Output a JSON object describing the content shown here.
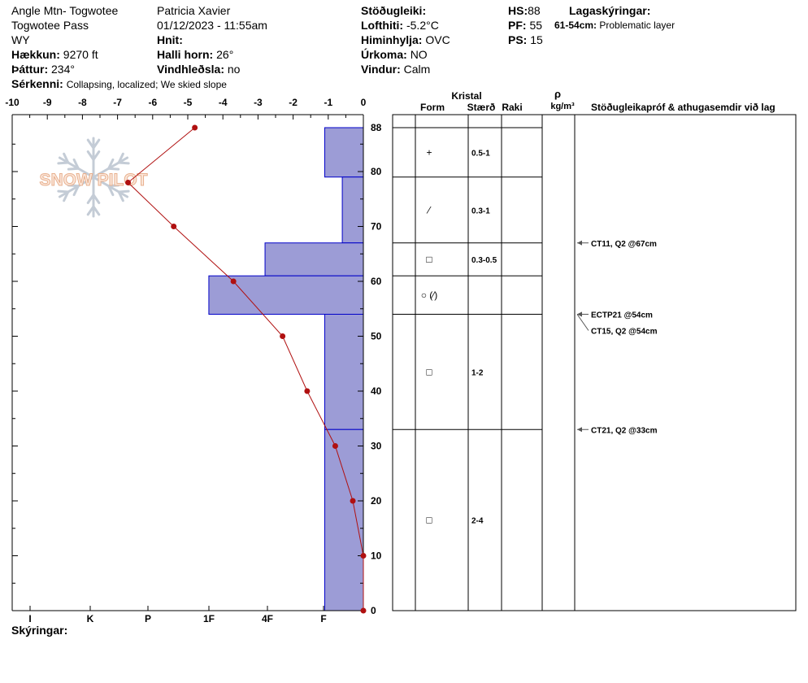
{
  "header": {
    "site": "Angle Mtn- Togwotee",
    "location": "Togwotee Pass",
    "state": "WY",
    "elevation_label": "Hækkun:",
    "elevation": "9270 ft",
    "aspect_label": "Þáttur:",
    "aspect": "234°",
    "features_label": "Sérkenni:",
    "features": "Collapsing, localized;  We skied slope",
    "observer": "Patricia Xavier",
    "datetime": "01/12/2023 - 11:55am",
    "coords_label": "Hnit:",
    "slope_label": "Halli horn:",
    "slope": "26°",
    "wind_loading_label": "Vindhleðsla:",
    "wind_loading": "no",
    "stability_label": "Stöðugleiki:",
    "air_temp_label": "Lofthiti:",
    "air_temp": "-5.2°C",
    "sky_label": "Himinhylja:",
    "sky": "OVC",
    "precip_label": "Úrkoma:",
    "precip": "NO",
    "wind_label": "Vindur:",
    "wind": "Calm",
    "hs_label": "HS:",
    "hs": "88",
    "pf_label": "PF:",
    "pf": "55",
    "ps_label": "PS:",
    "ps": "15",
    "layer_notes_label": "Lagaskýringar:",
    "layer_note_range": "61-54cm:",
    "layer_note_text": "Problematic layer"
  },
  "footer": {
    "notes_label": "Skýringar:"
  },
  "watermark": {
    "text": "SNOW PILOT",
    "icon": "snowflake-icon"
  },
  "colors": {
    "hardness_fill": "#9c9cd6",
    "hardness_stroke": "#0000c8",
    "temp_line": "#b01010"
  },
  "table_headers": {
    "crystal": "Kristal",
    "form": "Form",
    "size": "Stærð",
    "moisture": "Raki",
    "density_symbol": "ρ",
    "density_unit": "kg/m³",
    "tests": "Stöðugleikapróf & athugasemdir við lag"
  },
  "chart_data": {
    "type": "snow-profile",
    "temp_axis": {
      "min": -10,
      "max": 0,
      "ticks": [
        "-10",
        "-9",
        "-8",
        "-7",
        "-6",
        "-5",
        "-4",
        "-3",
        "-2",
        "-1",
        "0"
      ]
    },
    "depth_axis": {
      "min": 0,
      "max": 88,
      "ticks": [
        "0",
        "10",
        "20",
        "30",
        "40",
        "50",
        "60",
        "70",
        "80",
        "88"
      ]
    },
    "hardness_ticks": [
      "I",
      "K",
      "P",
      "1F",
      "4F",
      "F"
    ],
    "hardness_profile": [
      {
        "top": 88,
        "bottom": 79,
        "temp_equiv": -1.1
      },
      {
        "top": 79,
        "bottom": 67,
        "temp_equiv": -0.6
      },
      {
        "top": 67,
        "bottom": 61,
        "temp_equiv": -2.8
      },
      {
        "top": 61,
        "bottom": 54,
        "temp_equiv": -4.4
      },
      {
        "top": 54,
        "bottom": 33,
        "temp_equiv": -1.1
      },
      {
        "top": 33,
        "bottom": 0,
        "temp_equiv": -1.1
      }
    ],
    "temperature_profile": [
      {
        "depth": 88,
        "temp": -4.8
      },
      {
        "depth": 78,
        "temp": -6.7
      },
      {
        "depth": 70,
        "temp": -5.4
      },
      {
        "depth": 60,
        "temp": -3.7
      },
      {
        "depth": 50,
        "temp": -2.3
      },
      {
        "depth": 40,
        "temp": -1.6
      },
      {
        "depth": 30,
        "temp": -0.8
      },
      {
        "depth": 20,
        "temp": -0.3
      },
      {
        "depth": 10,
        "temp": 0
      },
      {
        "depth": 0,
        "temp": 0
      }
    ],
    "layers": [
      {
        "top": 88,
        "bottom": 79,
        "form": "+",
        "size": "0.5-1"
      },
      {
        "top": 79,
        "bottom": 67,
        "form": "⁄",
        "size": "0.3-1"
      },
      {
        "top": 67,
        "bottom": 61,
        "form": "□",
        "size": "0.3-0.5"
      },
      {
        "top": 61,
        "bottom": 54,
        "form": "○ (⁄)",
        "size": ""
      },
      {
        "top": 54,
        "bottom": 33,
        "form": "□",
        "size": "1-2"
      },
      {
        "top": 33,
        "bottom": 0,
        "form": "□",
        "size": "2-4"
      }
    ],
    "tests": [
      {
        "depth": 67,
        "label": "CT11, Q2 @67cm"
      },
      {
        "depth": 54,
        "label": "ECTP21 @54cm"
      },
      {
        "depth": 54,
        "label": "CT15, Q2 @54cm"
      },
      {
        "depth": 33,
        "label": "CT21, Q2 @33cm"
      }
    ]
  }
}
